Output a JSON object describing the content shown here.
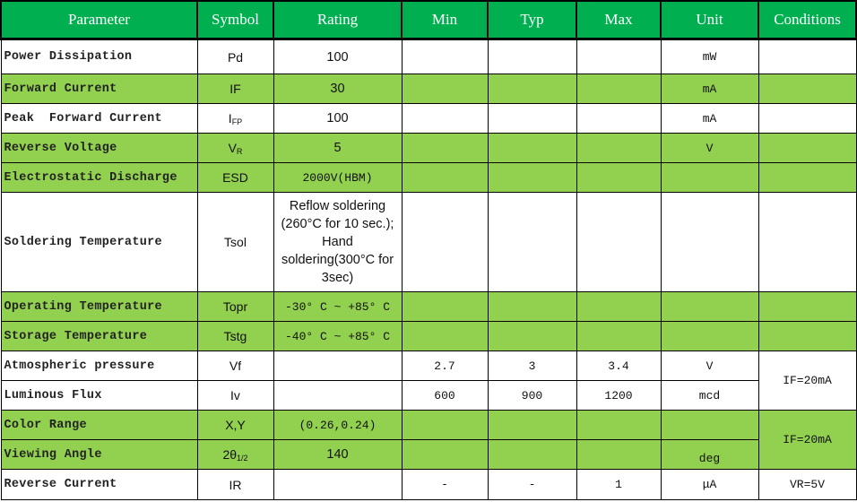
{
  "headers": [
    "Parameter",
    "Symbol",
    "Rating",
    "Min",
    "Typ",
    "Max",
    "Unit",
    "Conditions"
  ],
  "colors": {
    "header_bg": "#00B050",
    "row_highlight": "#92D050",
    "header_text": "#FFFFFF"
  },
  "rows": [
    {
      "parameter": "Power Dissipation",
      "symbol": "Pd",
      "symbol_sub": "",
      "rating": "100",
      "min": "",
      "typ": "",
      "max": "",
      "unit": "mW",
      "conditions": "",
      "highlight": false
    },
    {
      "parameter": "Forward Current",
      "symbol": "IF",
      "symbol_sub": "",
      "rating": "30",
      "min": "",
      "typ": "",
      "max": "",
      "unit": "mA",
      "conditions": "",
      "highlight": true
    },
    {
      "parameter": "Peak  Forward Current",
      "symbol": "I",
      "symbol_sub": "FP",
      "rating": "100",
      "min": "",
      "typ": "",
      "max": "",
      "unit": "mA",
      "conditions": "",
      "highlight": false
    },
    {
      "parameter": "Reverse Voltage",
      "symbol": "V",
      "symbol_sub": "R",
      "rating": "5",
      "min": "",
      "typ": "",
      "max": "",
      "unit": "V",
      "conditions": "",
      "highlight": true
    },
    {
      "parameter": "Electrostatic Discharge",
      "symbol": "ESD",
      "symbol_sub": "",
      "rating": "2000V(HBM)",
      "min": "",
      "typ": "",
      "max": "",
      "unit": "",
      "conditions": "",
      "highlight": true
    },
    {
      "parameter": "Soldering Temperature",
      "symbol": "Tsol",
      "symbol_sub": "",
      "rating": "Reflow soldering (260°C for 10 sec.); Hand soldering(300°C for 3sec)",
      "min": "",
      "typ": "",
      "max": "",
      "unit": "",
      "conditions": "",
      "highlight": false
    },
    {
      "parameter": "Operating Temperature",
      "symbol": "Topr",
      "symbol_sub": "",
      "rating": "-30° C ~ +85° C",
      "min": "",
      "typ": "",
      "max": "",
      "unit": "",
      "conditions": "",
      "highlight": true
    },
    {
      "parameter": "Storage Temperature",
      "symbol": "Tstg",
      "symbol_sub": "",
      "rating": "-40° C ~ +85° C",
      "min": "",
      "typ": "",
      "max": "",
      "unit": "",
      "conditions": "",
      "highlight": true
    },
    {
      "parameter": "Atmospheric pressure",
      "symbol": "Vf",
      "symbol_sub": "",
      "rating": "",
      "min": "2.7",
      "typ": "3",
      "max": "3.4",
      "unit": "V",
      "conditions": "IF=20mA",
      "cond_span": 2,
      "highlight": false
    },
    {
      "parameter": "Luminous Flux",
      "symbol": "Iv",
      "symbol_sub": "",
      "rating": "",
      "min": "600",
      "typ": "900",
      "max": "1200",
      "unit": "mcd",
      "cond_skip": true,
      "highlight": false
    },
    {
      "parameter": "Color Range",
      "symbol": "X,Y",
      "symbol_sub": "",
      "rating": "(0.26,0.24)",
      "min": "",
      "typ": "",
      "max": "",
      "unit": "",
      "conditions": "IF=20mA",
      "cond_span": 2,
      "highlight": true
    },
    {
      "parameter": "Viewing Angle",
      "symbol": "2θ",
      "symbol_sub": "1/2",
      "rating": "140",
      "min": "",
      "typ": "",
      "max": "",
      "unit": "deg",
      "cond_skip": true,
      "unit_bottom": true,
      "highlight": true
    },
    {
      "parameter": "Reverse Current",
      "symbol": "IR",
      "symbol_sub": "",
      "rating": "",
      "min": "-",
      "typ": "-",
      "max": "1",
      "unit": "μA",
      "conditions": "VR=5V",
      "highlight": false
    }
  ]
}
